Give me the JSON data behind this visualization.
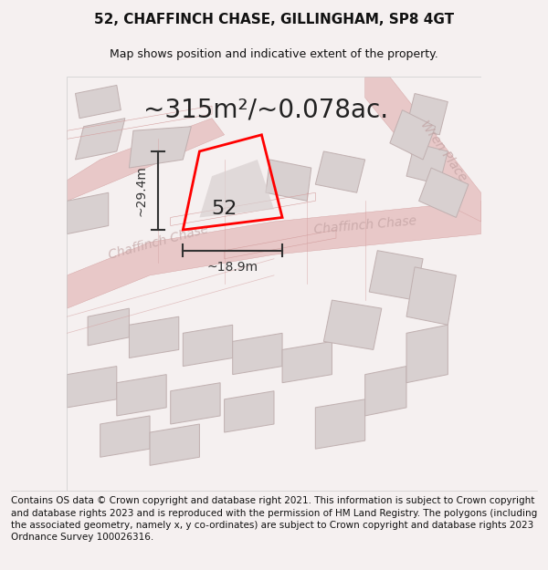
{
  "title": "52, CHAFFINCH CHASE, GILLINGHAM, SP8 4GT",
  "subtitle": "Map shows position and indicative extent of the property.",
  "area_text": "~315m²/~0.078ac.",
  "property_number": "52",
  "dim_height": "~29.4m",
  "dim_width": "~18.9m",
  "street_label1": "Chaffinch Chase",
  "street_label2": "Chaffinch Chase",
  "street_label3": "Wren Place",
  "footer_text": "Contains OS data © Crown copyright and database right 2021. This information is subject to Crown copyright and database rights 2023 and is reproduced with the permission of HM Land Registry. The polygons (including the associated geometry, namely x, y co-ordinates) are subject to Crown copyright and database rights 2023 Ordnance Survey 100026316.",
  "bg_color": "#f5f0f0",
  "map_bg_color": "#ffffff",
  "road_color": "#e8c8c8",
  "road_edge_color": "#d4a0a0",
  "building_fill": "#d8d0d0",
  "building_edge": "#c0b0b0",
  "plot_color": "#ff0000",
  "plot_fill": "none",
  "dim_color": "#333333",
  "title_fontsize": 11,
  "subtitle_fontsize": 9,
  "area_fontsize": 20,
  "number_fontsize": 16,
  "dim_fontsize": 10,
  "street_fontsize": 10,
  "footer_fontsize": 7.5
}
